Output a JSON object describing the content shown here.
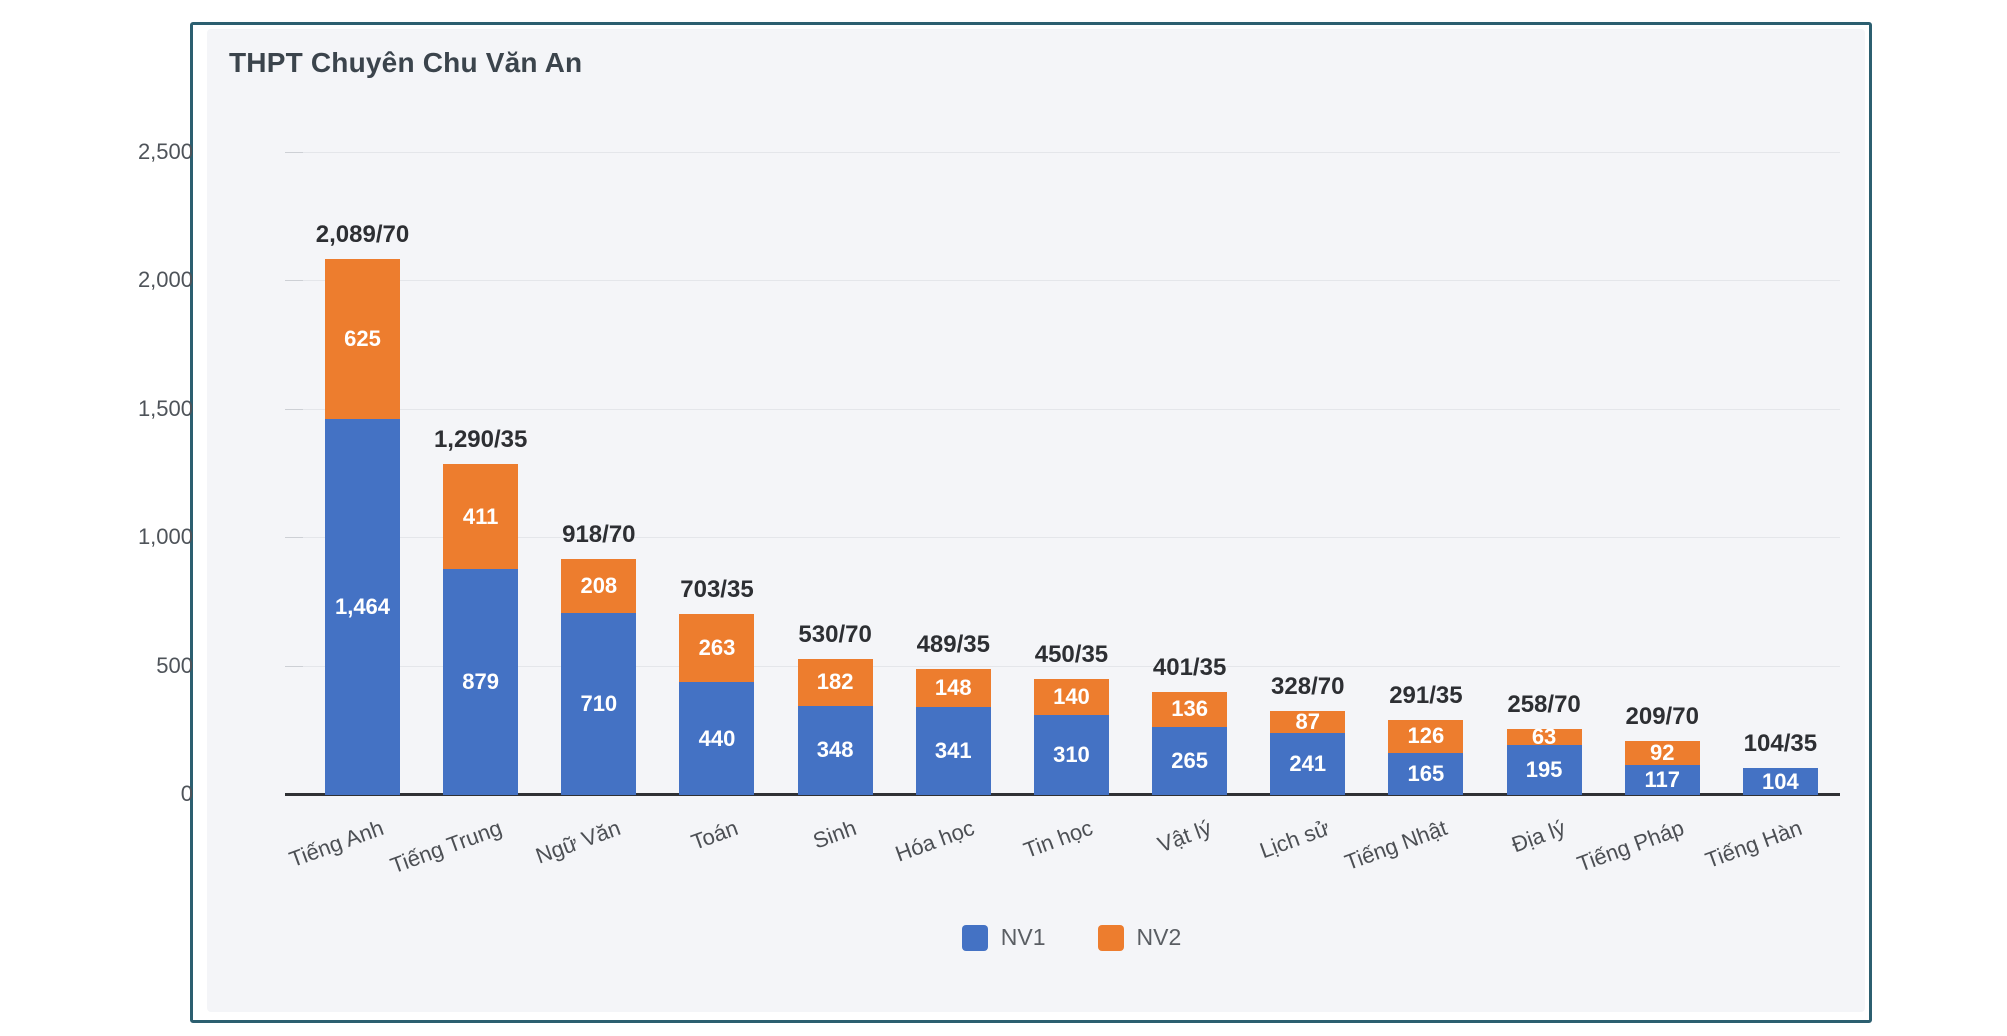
{
  "card": {
    "title": "THPT Chuyên Chu Văn An"
  },
  "colors": {
    "nv1": "#4472c4",
    "nv2": "#ed7d2e",
    "card_border": "#2c5f70",
    "panel_bg": "#f4f5f8",
    "gridline": "#e4e6ea",
    "axis": "#2f3135"
  },
  "chart_data": {
    "type": "bar",
    "stacked": true,
    "title": "THPT Chuyên Chu Văn An",
    "categories": [
      "Tiếng Anh",
      "Tiếng Trung",
      "Ngữ Văn",
      "Toán",
      "Sinh",
      "Hóa học",
      "Tin học",
      "Vật lý",
      "Lịch sử",
      "Tiếng Nhật",
      "Địa lý",
      "Tiếng Pháp",
      "Tiếng Hàn"
    ],
    "series": [
      {
        "name": "NV1",
        "color": "#4472c4",
        "values": [
          1464,
          879,
          710,
          440,
          348,
          341,
          310,
          265,
          241,
          165,
          195,
          117,
          104
        ]
      },
      {
        "name": "NV2",
        "color": "#ed7d2e",
        "values": [
          625,
          411,
          208,
          263,
          182,
          148,
          140,
          136,
          87,
          126,
          63,
          92,
          0
        ]
      }
    ],
    "totals": [
      "2,089/70",
      "1,290/35",
      "918/70",
      "703/35",
      "530/70",
      "489/35",
      "450/35",
      "401/35",
      "328/70",
      "291/35",
      "258/70",
      "209/70",
      "104/35"
    ],
    "y_ticks": [
      {
        "value": 0,
        "label": "0"
      },
      {
        "value": 500,
        "label": "500"
      },
      {
        "value": 1000,
        "label": "1,000"
      },
      {
        "value": 1500,
        "label": "1,500"
      },
      {
        "value": 2000,
        "label": "2,000"
      },
      {
        "value": 2500,
        "label": "2,500"
      }
    ],
    "ylim": [
      0,
      2500
    ],
    "grid": true,
    "legend": [
      "NV1",
      "NV2"
    ],
    "legend_position": "bottom"
  }
}
